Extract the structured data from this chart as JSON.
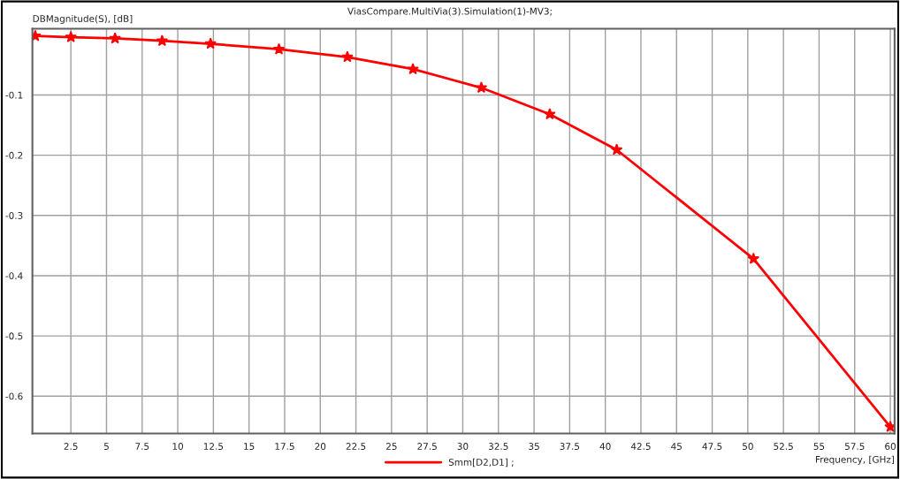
{
  "chart_data": {
    "type": "line",
    "title": "ViasCompare.MultiVia(3).Simulation(1)-MV3;",
    "xlabel": "Frequency, [GHz]",
    "ylabel": "DBMagnitude(S), [dB]",
    "x": [
      0,
      2.5,
      5.6,
      8.9,
      12.3,
      17.1,
      21.9,
      26.5,
      31.3,
      36.1,
      40.8,
      50.4,
      60
    ],
    "series": [
      {
        "name": "Smm[D2,D1] ;",
        "color": "#ff0000",
        "values": [
          -0.002,
          -0.004,
          -0.006,
          -0.01,
          -0.015,
          -0.024,
          -0.037,
          -0.057,
          -0.088,
          -0.132,
          -0.191,
          -0.372,
          -0.651
        ]
      }
    ],
    "xlim": [
      -0.2,
      60.3
    ],
    "ylim": [
      -0.662,
      0.01
    ],
    "xticks": [
      2.5,
      5,
      7.5,
      10,
      12.5,
      15,
      17.5,
      20,
      22.5,
      25,
      27.5,
      30,
      32.5,
      35,
      37.5,
      40,
      42.5,
      45,
      47.5,
      50,
      52.5,
      55,
      57.5,
      60
    ],
    "yticks": [
      -0.1,
      -0.2,
      -0.3,
      -0.4,
      -0.5,
      -0.6
    ],
    "grid": true,
    "legend": "bottom",
    "marker": "star",
    "line_style": "solid"
  }
}
